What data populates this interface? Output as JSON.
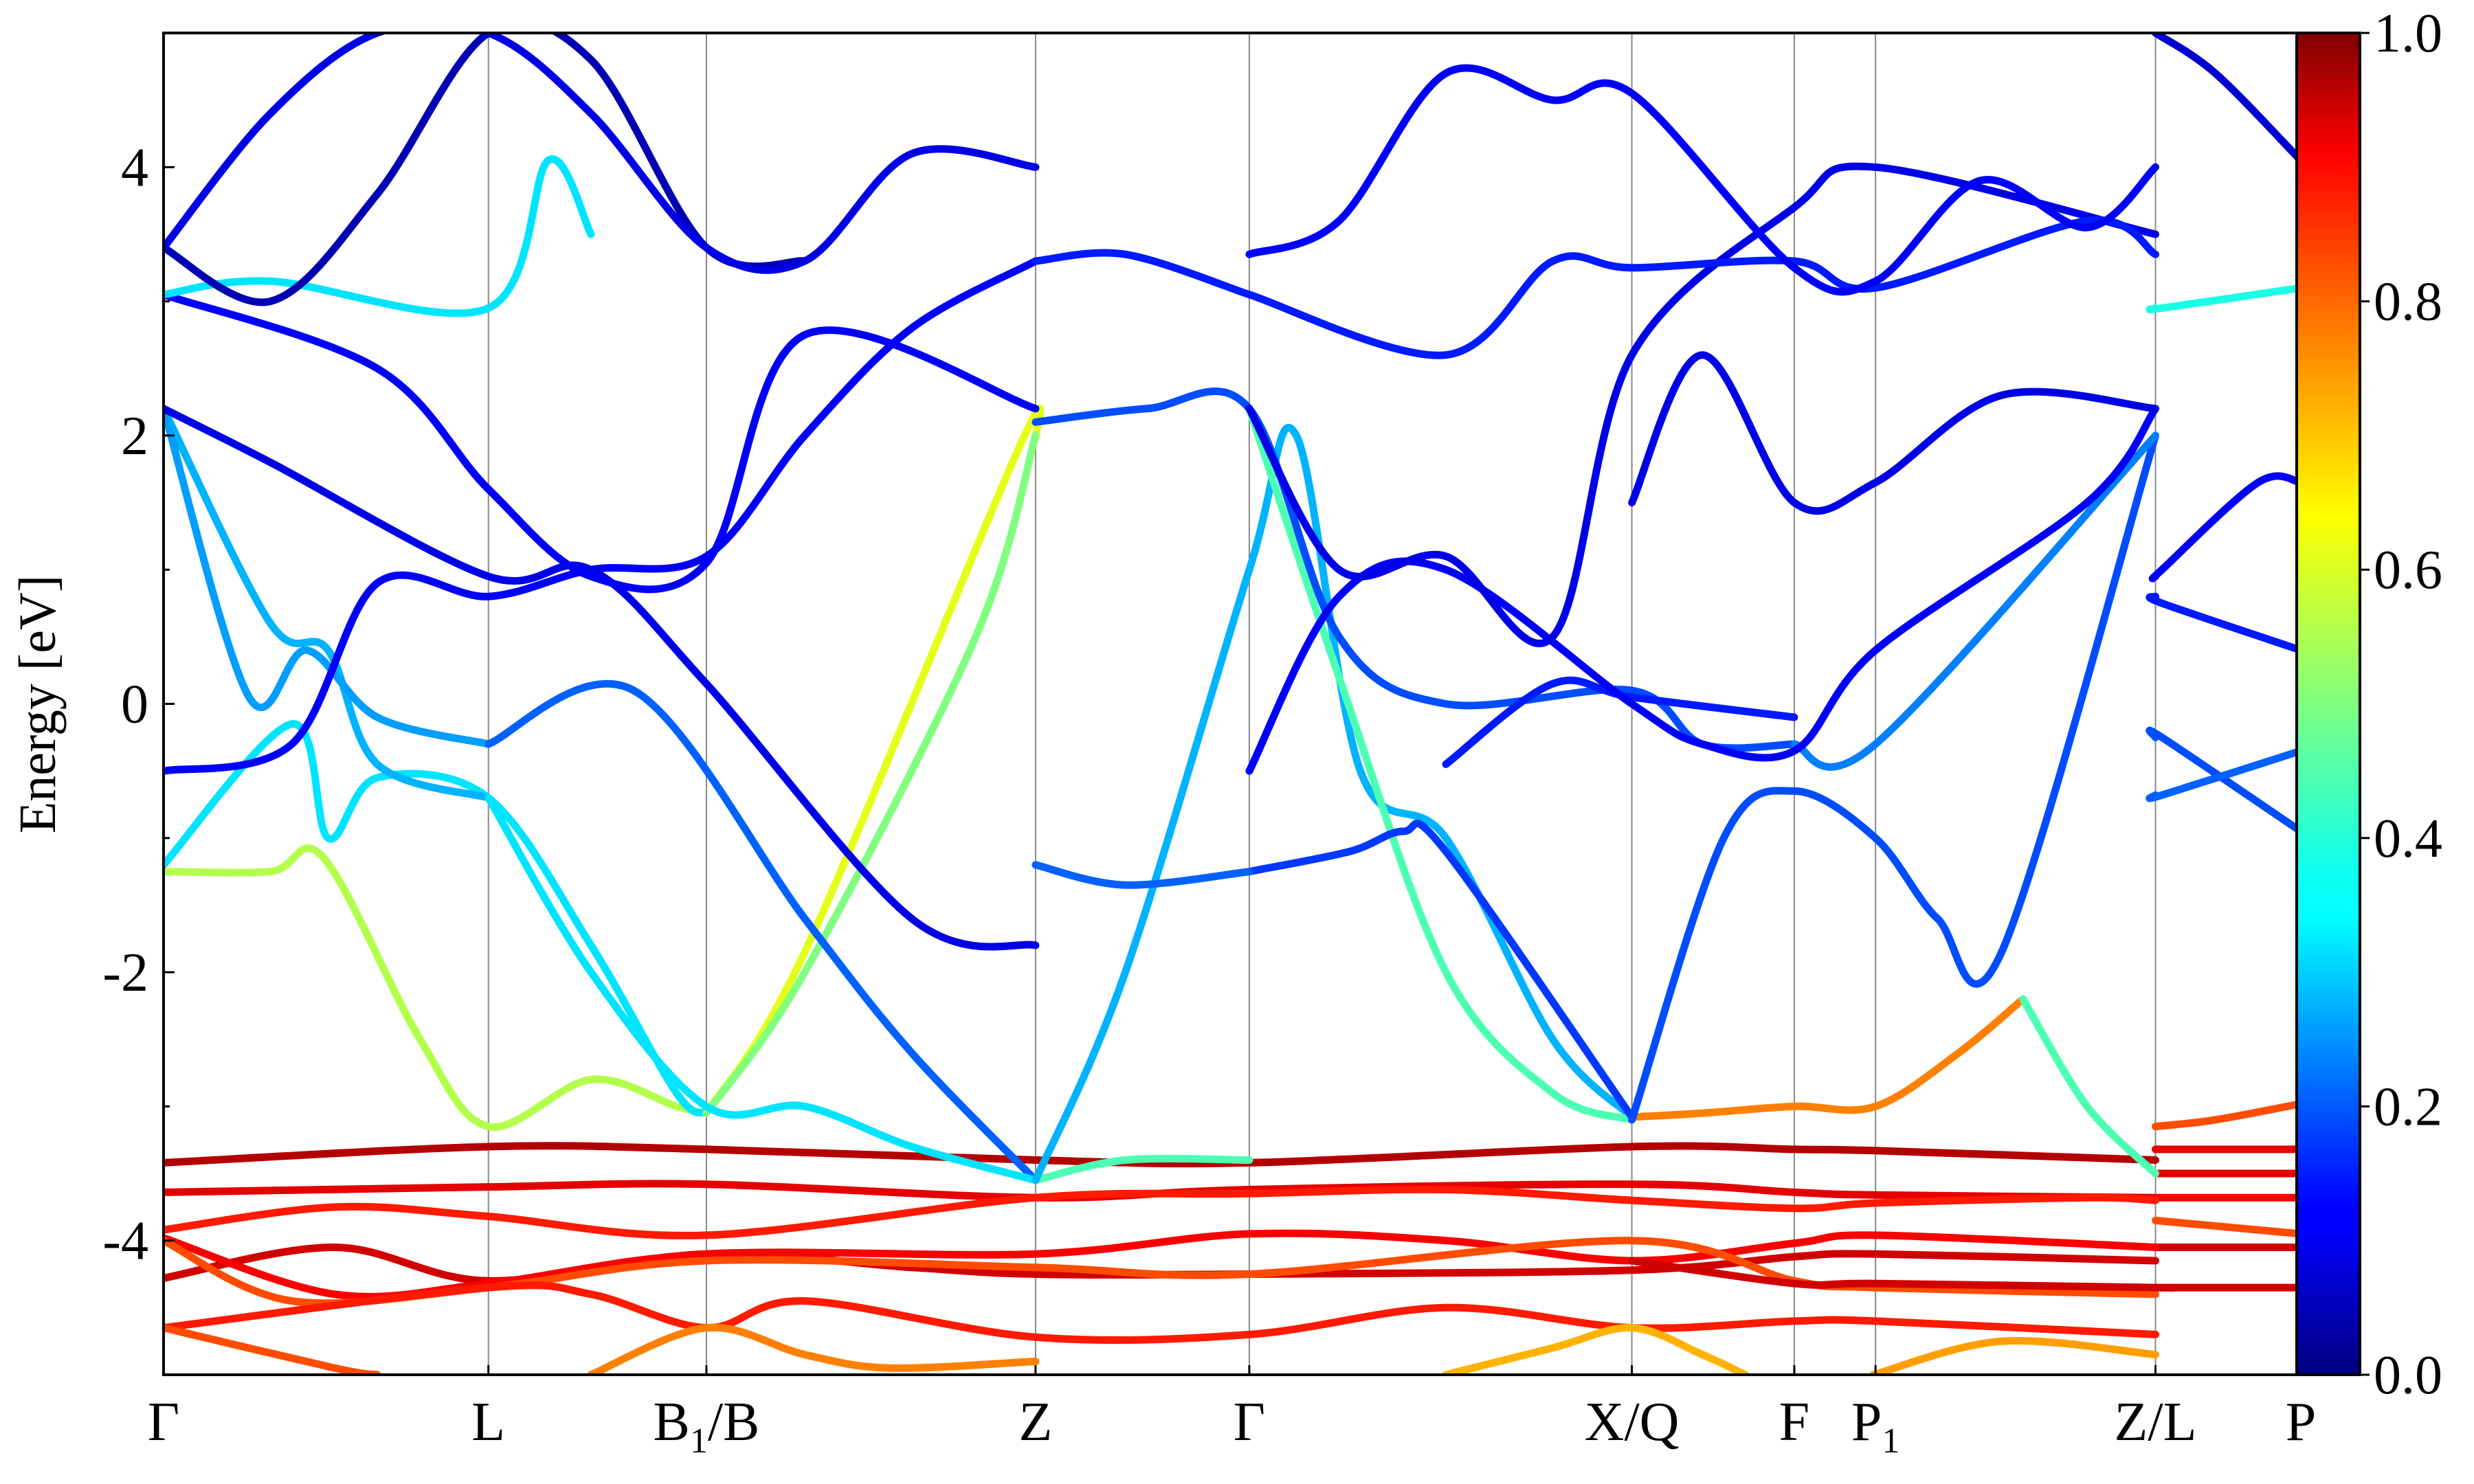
{
  "chart_data": {
    "type": "line",
    "title": "",
    "xlabel": "",
    "ylabel": "Energy [eV]",
    "ylim": [
      -5,
      5
    ],
    "y_ticks": [
      -4,
      -2,
      0,
      2,
      4
    ],
    "y_tick_labels": [
      "-4",
      "-2",
      "0",
      "2",
      "4"
    ],
    "grid": false,
    "legend": "none",
    "x_range": [
      0,
      1
    ],
    "high_symmetry_points": [
      {
        "position": 0.0,
        "main": "Γ",
        "sub": "",
        "rest": ""
      },
      {
        "position": 0.152,
        "main": "L",
        "sub": "",
        "rest": ""
      },
      {
        "position": 0.254,
        "main": "B",
        "sub": "1",
        "rest": "/B"
      },
      {
        "position": 0.408,
        "main": "Z",
        "sub": "",
        "rest": ""
      },
      {
        "position": 0.508,
        "main": "Γ",
        "sub": "",
        "rest": ""
      },
      {
        "position": 0.687,
        "main": "X/Q",
        "sub": "",
        "rest": ""
      },
      {
        "position": 0.763,
        "main": "F",
        "sub": "",
        "rest": ""
      },
      {
        "position": 0.801,
        "main": "P",
        "sub": "1",
        "rest": ""
      },
      {
        "position": 0.932,
        "main": "Z/L",
        "sub": "",
        "rest": ""
      },
      {
        "position": 1.0,
        "main": "P",
        "sub": "",
        "rest": ""
      }
    ],
    "colorbar": {
      "colormap": "jet",
      "range": [
        0,
        1
      ],
      "ticks": [
        0.0,
        0.2,
        0.4,
        0.6,
        0.8,
        1.0
      ],
      "tick_labels": [
        "0.0",
        "0.2",
        "0.4",
        "0.6",
        "0.8",
        "1.0"
      ]
    },
    "series": [
      {
        "weight": 0.95,
        "x": [
          0.0,
          0.152,
          0.254,
          0.408,
          0.508,
          0.687,
          0.763,
          0.801,
          0.932
        ],
        "y": [
          -3.42,
          -3.3,
          -3.32,
          -3.4,
          -3.42,
          -3.3,
          -3.32,
          -3.33,
          -3.4
        ]
      },
      {
        "weight": 0.9,
        "x": [
          0.932,
          1.0
        ],
        "y": [
          -3.32,
          -3.32
        ]
      },
      {
        "weight": 0.9,
        "x": [
          0.0,
          0.152,
          0.254,
          0.408,
          0.508,
          0.687,
          0.763,
          0.801,
          0.932
        ],
        "y": [
          -3.64,
          -3.6,
          -3.58,
          -3.68,
          -3.62,
          -3.58,
          -3.64,
          -3.66,
          -3.68
        ]
      },
      {
        "weight": 0.88,
        "x": [
          0.932,
          1.0
        ],
        "y": [
          -3.68,
          -3.68
        ]
      },
      {
        "weight": 0.9,
        "x": [
          0.932,
          1.0
        ],
        "y": [
          -3.5,
          -3.5
        ]
      },
      {
        "weight": 0.85,
        "x": [
          0.0,
          0.08,
          0.152,
          0.254,
          0.408,
          0.508,
          0.6,
          0.687,
          0.763,
          0.801,
          0.9,
          0.932
        ],
        "y": [
          -3.92,
          -3.75,
          -3.82,
          -3.96,
          -3.68,
          -3.65,
          -3.62,
          -3.7,
          -3.76,
          -3.72,
          -3.68,
          -3.7
        ]
      },
      {
        "weight": 0.92,
        "x": [
          0.0,
          0.08,
          0.152,
          0.254,
          0.35,
          0.408,
          0.508,
          0.687,
          0.763,
          0.801,
          0.932
        ],
        "y": [
          -4.28,
          -4.05,
          -4.3,
          -4.1,
          -4.2,
          -4.25,
          -4.25,
          -4.22,
          -4.12,
          -4.1,
          -4.15
        ]
      },
      {
        "weight": 0.92,
        "x": [
          0.932,
          1.0
        ],
        "y": [
          -4.05,
          -4.05
        ]
      },
      {
        "weight": 0.88,
        "x": [
          0.0,
          0.08,
          0.152,
          0.254,
          0.408,
          0.508,
          0.6,
          0.687,
          0.763,
          0.801,
          0.932
        ],
        "y": [
          -3.98,
          -4.4,
          -4.32,
          -4.1,
          -4.1,
          -3.95,
          -4.0,
          -4.15,
          -4.02,
          -3.96,
          -4.05
        ]
      },
      {
        "weight": 0.8,
        "x": [
          0.0,
          0.06,
          0.152,
          0.254,
          0.408,
          0.508,
          0.687,
          0.763,
          0.801,
          0.932
        ],
        "y": [
          -4.0,
          -4.45,
          -4.35,
          -4.15,
          -4.2,
          -4.25,
          -4.0,
          -4.3,
          -4.35,
          -4.4
        ]
      },
      {
        "weight": 0.92,
        "x": [
          0.687,
          0.763,
          0.801,
          0.932,
          0.935,
          1.0
        ],
        "y": [
          -4.15,
          -4.32,
          -4.32,
          -4.35,
          -4.35,
          -4.35
        ]
      },
      {
        "weight": 0.85,
        "x": [
          0.0,
          0.152,
          0.2,
          0.254,
          0.3,
          0.408,
          0.508,
          0.6,
          0.687,
          0.763,
          0.801,
          0.932
        ],
        "y": [
          -4.65,
          -4.35,
          -4.4,
          -4.65,
          -4.45,
          -4.72,
          -4.7,
          -4.5,
          -4.65,
          -4.6,
          -4.6,
          -4.7
        ]
      },
      {
        "weight": 0.8,
        "x": [
          0.0,
          0.08,
          0.1
        ],
        "y": [
          -4.65,
          -4.95,
          -5.0
        ]
      },
      {
        "weight": 0.75,
        "x": [
          0.2,
          0.254,
          0.3,
          0.34,
          0.408
        ],
        "y": [
          -5.0,
          -4.65,
          -4.85,
          -4.95,
          -4.9
        ]
      },
      {
        "weight": 0.7,
        "x": [
          0.6,
          0.65,
          0.687,
          0.72,
          0.74
        ],
        "y": [
          -5.0,
          -4.8,
          -4.65,
          -4.85,
          -5.0
        ]
      },
      {
        "weight": 0.72,
        "x": [
          0.8,
          0.86,
          0.932
        ],
        "y": [
          -5.0,
          -4.75,
          -4.85
        ]
      },
      {
        "weight": 0.8,
        "x": [
          0.932,
          1.0
        ],
        "y": [
          -3.85,
          -3.95
        ]
      },
      {
        "weight": 0.8,
        "x": [
          0.932,
          0.96,
          1.0
        ],
        "y": [
          -3.15,
          -3.1,
          -2.98
        ]
      },
      {
        "weight": 0.75,
        "x": [
          0.687,
          0.72,
          0.763,
          0.801,
          0.84,
          0.87
        ],
        "y": [
          -3.08,
          -3.05,
          -3.0,
          -3.0,
          -2.6,
          -2.2
        ]
      },
      {
        "weight": 0.45,
        "x": [
          0.87,
          0.9,
          0.932
        ],
        "y": [
          -2.2,
          -3.0,
          -3.5
        ]
      },
      {
        "weight": 0.55,
        "x": [
          0.0,
          0.05,
          0.075,
          0.12,
          0.152,
          0.2,
          0.24,
          0.254
        ],
        "y": [
          -1.25,
          -1.25,
          -1.15,
          -2.5,
          -3.15,
          -2.8,
          -3.0,
          -3.05
        ]
      },
      {
        "weight": 0.6,
        "x": [
          0.254,
          0.3,
          0.4,
          0.408
        ],
        "y": [
          -3.05,
          -1.85,
          1.9,
          1.98
        ]
      },
      {
        "weight": 0.35,
        "x": [
          0.0,
          0.06,
          0.077,
          0.1,
          0.152,
          0.2,
          0.24,
          0.254
        ],
        "y": [
          -1.2,
          -0.15,
          -1.0,
          -0.55,
          -0.7,
          -1.8,
          -2.9,
          -3.05
        ]
      },
      {
        "weight": 0.5,
        "x": [
          0.254,
          0.3,
          0.38,
          0.408
        ],
        "y": [
          -3.05,
          -2.0,
          0.5,
          2.0
        ]
      },
      {
        "weight": 0.3,
        "x": [
          0.0,
          0.05,
          0.077,
          0.1,
          0.152
        ],
        "y": [
          2.2,
          0.6,
          0.4,
          -0.45,
          -0.7
        ]
      },
      {
        "weight": 0.28,
        "x": [
          0.0,
          0.04,
          0.067,
          0.1,
          0.152
        ],
        "y": [
          2.2,
          0.05,
          0.4,
          -0.1,
          -0.3
        ]
      },
      {
        "weight": 0.22,
        "x": [
          0.152,
          0.22,
          0.3,
          0.35,
          0.408
        ],
        "y": [
          -0.3,
          0.1,
          -1.6,
          -2.6,
          -3.55
        ]
      },
      {
        "weight": 0.35,
        "x": [
          0.152,
          0.2,
          0.254,
          0.3,
          0.35,
          0.408
        ],
        "y": [
          -0.7,
          -2.0,
          -3.0,
          -3.0,
          -3.3,
          -3.55
        ]
      },
      {
        "weight": 0.45,
        "x": [
          0.408,
          0.45,
          0.508
        ],
        "y": [
          -3.55,
          -3.4,
          -3.4
        ]
      },
      {
        "weight": 0.3,
        "x": [
          0.408,
          0.45,
          0.508,
          0.53,
          0.56,
          0.6,
          0.65,
          0.687
        ],
        "y": [
          -3.55,
          -2.0,
          1.0,
          2.0,
          -0.5,
          -1.0,
          -2.5,
          -3.08
        ]
      },
      {
        "weight": 0.45,
        "x": [
          0.508,
          0.55,
          0.6,
          0.65,
          0.687
        ],
        "y": [
          2.2,
          0.2,
          -2.0,
          -2.9,
          -3.1
        ]
      },
      {
        "weight": 0.18,
        "x": [
          0.508,
          0.555,
          0.58,
          0.6,
          0.687
        ],
        "y": [
          -1.25,
          -1.1,
          -0.95,
          -1.1,
          -3.08
        ]
      },
      {
        "weight": 0.22,
        "x": [
          0.408,
          0.45,
          0.508
        ],
        "y": [
          -1.2,
          -1.35,
          -1.25
        ]
      },
      {
        "weight": 0.2,
        "x": [
          0.408,
          0.46,
          0.508,
          0.55,
          0.6,
          0.687,
          0.72,
          0.763
        ],
        "y": [
          2.1,
          2.2,
          2.2,
          0.5,
          0.0,
          0.1,
          -0.3,
          -0.3
        ]
      },
      {
        "weight": 0.2,
        "x": [
          0.687,
          0.73,
          0.763,
          0.801,
          0.83,
          0.86,
          0.932
        ],
        "y": [
          -3.1,
          -1.0,
          -0.65,
          -1.0,
          -1.6,
          -1.85,
          2.0
        ]
      },
      {
        "weight": 0.15,
        "x": [
          0.6,
          0.65,
          0.687,
          0.763
        ],
        "y": [
          -0.45,
          0.15,
          0.05,
          -0.1
        ]
      },
      {
        "weight": 0.25,
        "x": [
          0.763,
          0.801,
          0.932
        ],
        "y": [
          -0.3,
          -0.3,
          2.0
        ]
      },
      {
        "weight": 0.12,
        "x": [
          0.0,
          0.06,
          0.1,
          0.152,
          0.2,
          0.254,
          0.3,
          0.35,
          0.408
        ],
        "y": [
          -0.5,
          -0.3,
          0.9,
          0.8,
          1.0,
          1.1,
          2.0,
          2.8,
          3.3
        ]
      },
      {
        "weight": 0.1,
        "x": [
          0.0,
          0.05,
          0.152,
          0.2,
          0.254,
          0.35,
          0.408
        ],
        "y": [
          2.2,
          1.8,
          0.95,
          1.0,
          0.15,
          -1.6,
          -1.8
        ]
      },
      {
        "weight": 0.15,
        "x": [
          0.408,
          0.45,
          0.508
        ],
        "y": [
          3.3,
          3.35,
          3.05
        ]
      },
      {
        "weight": 0.12,
        "x": [
          0.508,
          0.55,
          0.6,
          0.687,
          0.72,
          0.763,
          0.801,
          0.9,
          0.932
        ],
        "y": [
          -0.5,
          0.8,
          1.0,
          0.0,
          -0.3,
          -0.35,
          0.4,
          1.5,
          2.2
        ]
      },
      {
        "weight": 0.1,
        "x": [
          0.508,
          0.55,
          0.6,
          0.65,
          0.687,
          0.763,
          0.801,
          0.932
        ],
        "y": [
          2.2,
          1.0,
          1.1,
          0.5,
          2.6,
          3.7,
          4.0,
          3.5
        ]
      },
      {
        "weight": 0.1,
        "x": [
          0.687,
          0.72,
          0.763,
          0.801,
          0.86,
          0.932
        ],
        "y": [
          1.5,
          2.6,
          1.5,
          1.65,
          2.3,
          2.2
        ]
      },
      {
        "weight": 0.12,
        "x": [
          0.0,
          0.1,
          0.152,
          0.2,
          0.254,
          0.3,
          0.408
        ],
        "y": [
          3.05,
          2.5,
          1.6,
          0.95,
          1.05,
          2.75,
          2.2
        ]
      },
      {
        "weight": 0.35,
        "x": [
          0.0,
          0.05,
          0.152,
          0.18,
          0.2
        ],
        "y": [
          3.05,
          3.15,
          2.95,
          4.05,
          3.5
        ]
      },
      {
        "weight": 0.05,
        "x": [
          0.0,
          0.05,
          0.1,
          0.152,
          0.2,
          0.254,
          0.3
        ],
        "y": [
          3.4,
          3.0,
          3.8,
          5.0,
          4.8,
          3.4,
          3.3
        ]
      },
      {
        "weight": 0.1,
        "x": [
          0.0,
          0.05,
          0.1,
          0.152,
          0.2,
          0.254,
          0.3,
          0.35,
          0.408
        ],
        "y": [
          3.4,
          4.4,
          5.0,
          5.0,
          4.4,
          3.4,
          3.3,
          4.1,
          4.0
        ]
      },
      {
        "weight": 0.15,
        "x": [
          0.508,
          0.6,
          0.65,
          0.687,
          0.763,
          0.801,
          0.9,
          0.932
        ],
        "y": [
          3.05,
          2.6,
          3.3,
          3.25,
          3.3,
          3.1,
          3.6,
          3.35
        ]
      },
      {
        "weight": 0.12,
        "x": [
          0.508,
          0.55,
          0.6,
          0.65,
          0.687,
          0.763,
          0.801,
          0.85,
          0.9,
          0.932
        ],
        "y": [
          3.35,
          3.6,
          4.7,
          4.5,
          4.55,
          3.25,
          3.15,
          3.9,
          3.55,
          4.0
        ]
      },
      {
        "weight": 0.4,
        "x": [
          0.932,
          0.935,
          1.0
        ],
        "y": [
          2.95,
          2.95,
          3.1
        ]
      },
      {
        "weight": 0.12,
        "x": [
          0.932,
          0.935,
          0.98,
          1.0
        ],
        "y": [
          0.95,
          1.0,
          1.65,
          1.65
        ]
      },
      {
        "weight": 0.15,
        "x": [
          0.932,
          0.935,
          1.0
        ],
        "y": [
          0.8,
          0.75,
          0.4
        ]
      },
      {
        "weight": 0.2,
        "x": [
          0.932,
          0.935,
          1.0
        ],
        "y": [
          -0.25,
          -0.25,
          -0.95
        ]
      },
      {
        "weight": 0.22,
        "x": [
          0.932,
          0.935,
          1.0
        ],
        "y": [
          -0.68,
          -0.68,
          -0.35
        ]
      },
      {
        "weight": 0.08,
        "x": [
          0.932,
          0.96,
          1.0
        ],
        "y": [
          5.0,
          4.7,
          4.05
        ]
      }
    ]
  }
}
